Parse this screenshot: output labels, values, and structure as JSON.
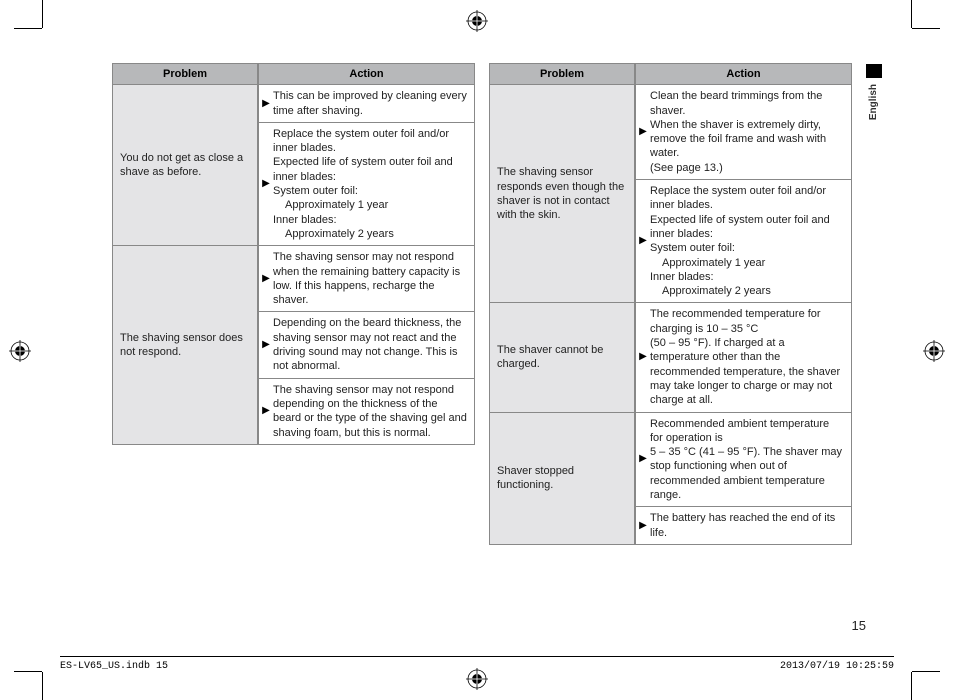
{
  "headers": {
    "problem": "Problem",
    "action": "Action"
  },
  "left": [
    {
      "problem": "You do not get as close a shave as before.",
      "actions": [
        {
          "text": "This can be improved by cleaning every time after shaving."
        },
        {
          "text": "Replace the system outer foil and/or inner blades.<br>Expected life of system outer foil and inner blades:<br>System outer foil:<br><span class='indent'>Approximately 1 year</span>Inner blades:<br><span class='indent'>Approximately 2 years</span>"
        }
      ]
    },
    {
      "problem": "The shaving sensor does not respond.",
      "actions": [
        {
          "text": "The shaving sensor may not respond when the remaining battery capacity is low. If this happens, recharge the shaver."
        },
        {
          "text": "Depending on the beard thickness, the shaving sensor may not react and the driving sound may not change. This is not abnormal."
        },
        {
          "text": "The shaving sensor may not respond depending on the thickness of the beard or the type of the shaving gel and shaving foam, but this is normal."
        }
      ]
    }
  ],
  "right": [
    {
      "problem": "The shaving sensor responds even though the shaver is not in contact with the skin.",
      "actions": [
        {
          "text": "Clean the beard trimmings from the shaver.<br>When the shaver is extremely dirty, remove the foil frame and wash with water.<br>(See page 13.)"
        },
        {
          "text": "Replace the system outer foil and/or inner blades.<br>Expected life of system outer foil and inner blades:<br>System outer foil:<br><span class='indent'>Approximately 1 year</span>Inner blades:<br><span class='indent'>Approximately 2 years</span>"
        }
      ]
    },
    {
      "problem": "The shaver cannot be charged.",
      "actions": [
        {
          "text": "The recommended temperature for charging is 10 – 35 °C<br>(50 – 95 °F). If charged at a temperature other than the recommended temperature, the shaver may take longer to charge or may not charge at all."
        }
      ]
    },
    {
      "problem": "Shaver stopped functioning.",
      "actions": [
        {
          "text": "Recommended ambient temperature for operation is<br>5 – 35 °C (41 – 95 °F). The shaver may stop functioning when out of recommended ambient temperature range."
        },
        {
          "text": "The battery has reached the end of its life."
        }
      ]
    }
  ],
  "sideLabel": "English",
  "pageNumber": "15",
  "footer": {
    "file": "ES-LV65_US.indb   15",
    "timestamp": "2013/07/19   10:25:59"
  }
}
